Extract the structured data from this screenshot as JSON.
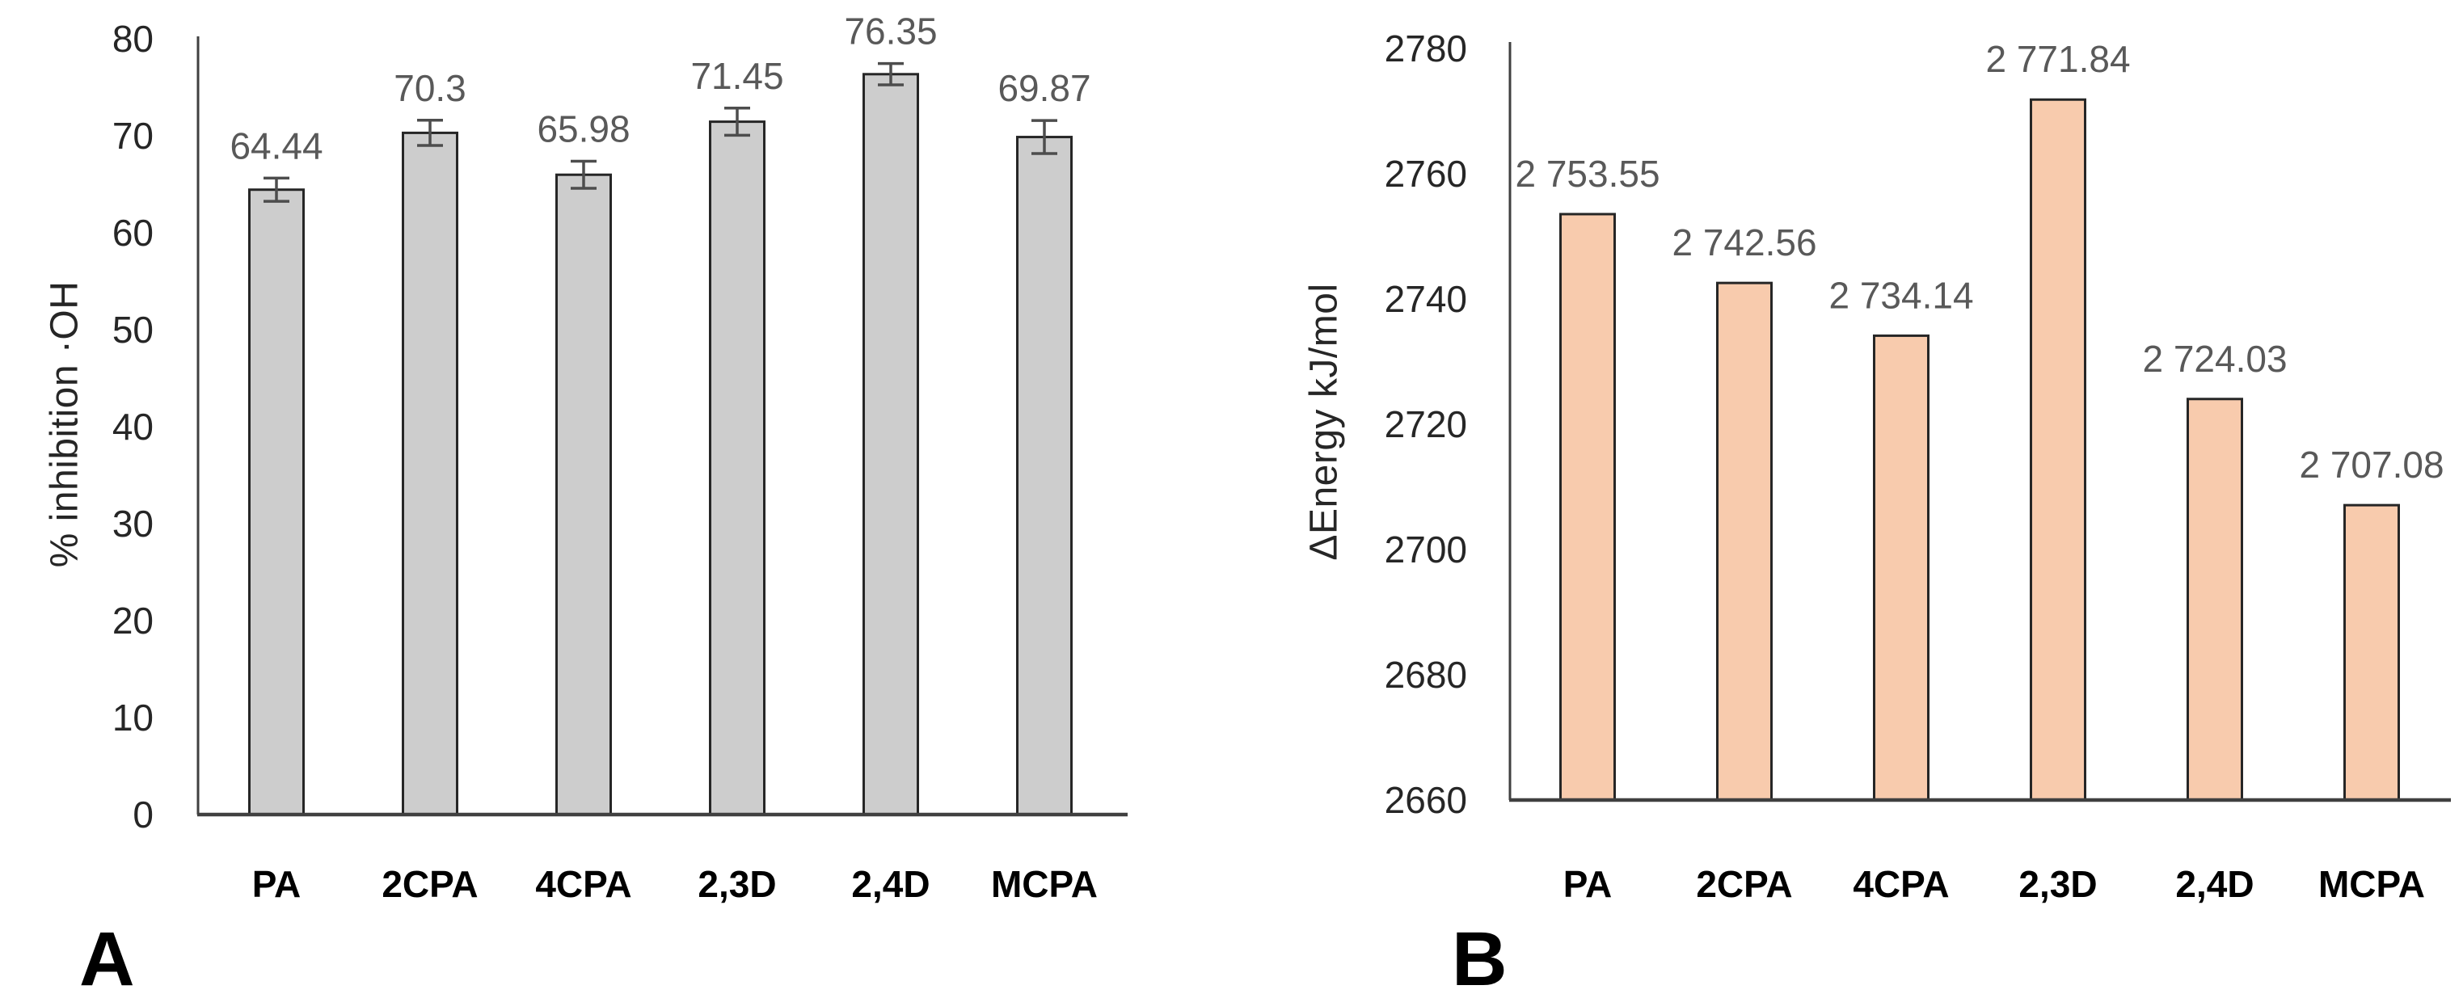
{
  "figure": {
    "background": "#ffffff",
    "panel_labels": [
      "A",
      "B"
    ]
  },
  "chart_data": [
    {
      "type": "bar",
      "panel_label": "A",
      "title": "",
      "xlabel": "",
      "ylabel": "% inhibition ·OH",
      "categories": [
        "PA",
        "2CPA",
        "4CPA",
        "2,3D",
        "2,4D",
        "MCPA"
      ],
      "values": [
        64.44,
        70.3,
        65.98,
        71.45,
        76.35,
        69.87
      ],
      "value_labels": [
        "64.44",
        "70.3",
        "65.98",
        "71.45",
        "76.35",
        "69.87"
      ],
      "error_bars": [
        1.2,
        1.3,
        1.4,
        1.4,
        1.1,
        1.7
      ],
      "ylim": [
        0,
        80
      ],
      "ytick_labels": [
        "0",
        "10",
        "20",
        "30",
        "40",
        "50",
        "60",
        "70",
        "80"
      ],
      "grid": false,
      "legend": null,
      "bar_fill": "#cdcdcd",
      "bar_stroke": "#262626",
      "error_bar_color": "#4d4d4d",
      "value_label_color": "#595959",
      "tick_label_color": "#262626",
      "category_label_color": "#000000",
      "axis_color": "#404040"
    },
    {
      "type": "bar",
      "panel_label": "B",
      "title": "",
      "xlabel": "",
      "ylabel": "ΔEnergy kJ/mol",
      "categories": [
        "PA",
        "2CPA",
        "4CPA",
        "2,3D",
        "2,4D",
        "MCPA"
      ],
      "values": [
        2753.55,
        2742.56,
        2734.14,
        2771.84,
        2724.03,
        2707.08
      ],
      "value_labels": [
        "2 753.55",
        "2 742.56",
        "2 734.14",
        "2 771.84",
        "2 724.03",
        "2 707.08"
      ],
      "error_bars": null,
      "ylim": [
        2660,
        2780
      ],
      "ytick_labels": [
        "2660",
        "2680",
        "2700",
        "2720",
        "2740",
        "2760",
        "2780"
      ],
      "grid": false,
      "legend": null,
      "bar_fill": "#f8cbad",
      "bar_stroke": "#262626",
      "error_bar_color": null,
      "value_label_color": "#595959",
      "tick_label_color": "#262626",
      "category_label_color": "#000000",
      "axis_color": "#404040"
    }
  ]
}
